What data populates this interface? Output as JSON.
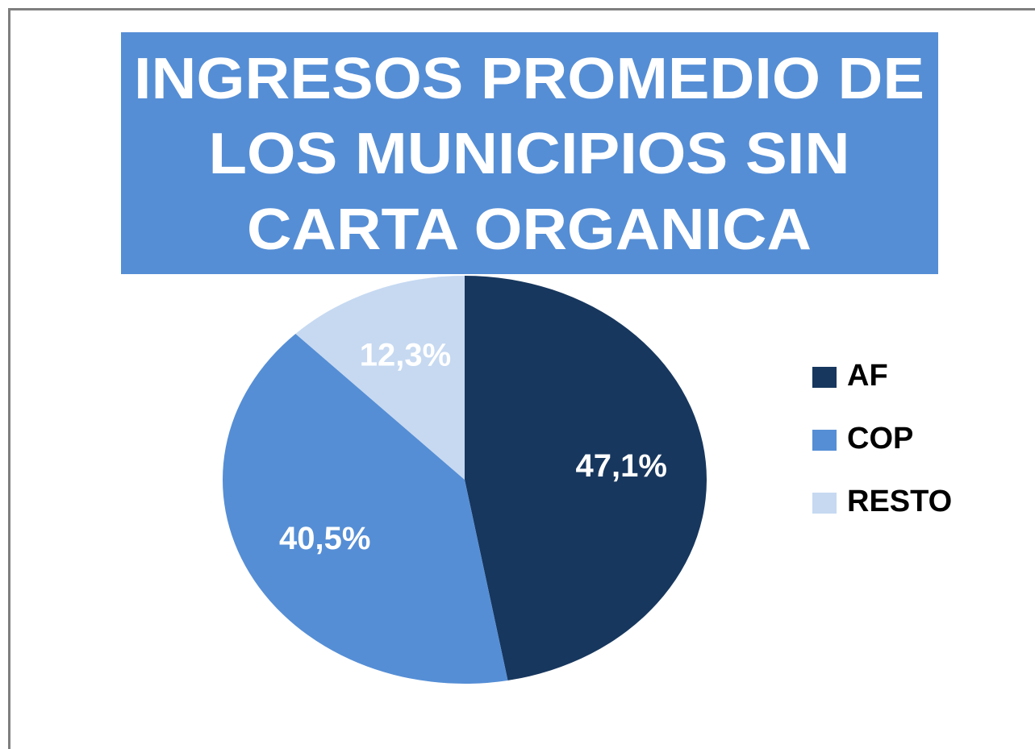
{
  "chart_data": {
    "type": "pie",
    "title": [
      "INGRESOS PROMEDIO DE",
      "LOS MUNICIPIOS SIN",
      "CARTA ORGANICA"
    ],
    "categories": [
      "AF",
      "COP",
      "RESTO"
    ],
    "values": [
      47.1,
      40.5,
      12.3
    ],
    "value_labels": [
      "47,1%",
      "40,5%",
      "12,3%"
    ],
    "colors": [
      "#17375e",
      "#558ed5",
      "#c6d9f1"
    ],
    "legend": "right"
  }
}
